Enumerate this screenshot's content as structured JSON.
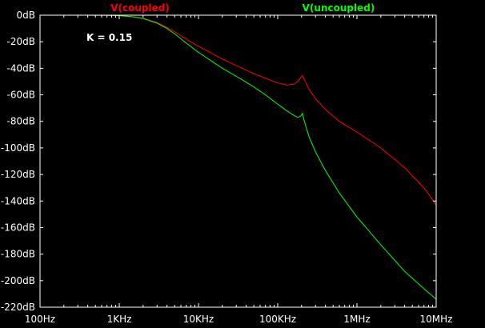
{
  "chart_data": {
    "type": "line",
    "x_scale": "log",
    "xlim": [
      100,
      10000000
    ],
    "ylim": [
      -220,
      0
    ],
    "grid": false,
    "legend_position": "top",
    "x_ticks": [
      "100Hz",
      "1KHz",
      "10KHz",
      "100KHz",
      "1MHz",
      "10MHz"
    ],
    "x_tick_values": [
      100,
      1000,
      10000,
      100000,
      1000000,
      10000000
    ],
    "y_ticks": [
      "0dB",
      "-20dB",
      "-40dB",
      "-60dB",
      "-80dB",
      "-100dB",
      "-120dB",
      "-140dB",
      "-160dB",
      "-180dB",
      "-200dB",
      "-220dB"
    ],
    "y_tick_values": [
      0,
      -20,
      -40,
      -60,
      -80,
      -100,
      -120,
      -140,
      -160,
      -180,
      -200,
      -220
    ],
    "annotation": "K = 0.15",
    "background_color": "#000000",
    "axis_color": "#ffffff",
    "series": [
      {
        "name": "V(coupled)",
        "color": "#ff0000",
        "x": [
          100,
          300,
          700,
          1000,
          1500,
          2000,
          3000,
          4000,
          5000,
          7000,
          10000,
          15000,
          20000,
          30000,
          50000,
          70000,
          100000,
          130000,
          160000,
          180000,
          195000,
          205000,
          215000,
          250000,
          300000,
          400000,
          600000,
          1000000,
          2000000,
          4000000,
          7000000,
          10000000
        ],
        "y": [
          0,
          0,
          -0.1,
          -0.4,
          -1.2,
          -2.3,
          -5.5,
          -9.2,
          -12.5,
          -18,
          -23.5,
          -29,
          -33,
          -38,
          -44,
          -47.5,
          -51,
          -52.6,
          -52,
          -50,
          -47,
          -45.5,
          -48,
          -56,
          -63,
          -71,
          -80,
          -88,
          -100,
          -115,
          -130,
          -143
        ]
      },
      {
        "name": "V(uncoupled)",
        "color": "#00ff00",
        "x": [
          100,
          300,
          700,
          1000,
          1500,
          2000,
          3000,
          4000,
          5000,
          7000,
          10000,
          15000,
          20000,
          30000,
          50000,
          70000,
          100000,
          130000,
          160000,
          180000,
          195000,
          205000,
          215000,
          250000,
          300000,
          400000,
          600000,
          1000000,
          2000000,
          4000000,
          7000000,
          10000000
        ],
        "y": [
          0,
          0,
          -0.1,
          -0.3,
          -1.2,
          -2.5,
          -6,
          -10,
          -14,
          -21,
          -28,
          -35,
          -40,
          -46,
          -54,
          -60,
          -67,
          -72,
          -75.5,
          -77,
          -76,
          -74,
          -79,
          -92,
          -103,
          -117,
          -134,
          -152,
          -173,
          -193,
          -206,
          -214
        ]
      }
    ]
  }
}
